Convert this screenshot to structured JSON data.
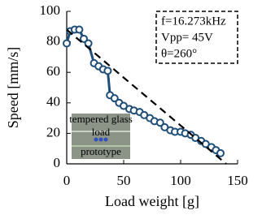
{
  "chart_data": {
    "type": "line",
    "x_label": "Load weight [g]",
    "y_label": "Speed [mm/s]",
    "xlim": [
      0,
      150
    ],
    "xticks": [
      0,
      50,
      100,
      150
    ],
    "ylim": [
      0,
      100
    ],
    "yticks": [
      0,
      20,
      40,
      60,
      80,
      100
    ],
    "annotations": [
      "f=16.273kHz",
      "Vpp= 45V",
      "θ=260°"
    ],
    "inset_labels": [
      "tempered glass",
      "load",
      "prototype"
    ],
    "series": [
      {
        "color": "#1f4e79",
        "x": [
          0,
          3,
          7,
          11,
          15,
          19,
          24,
          28,
          32,
          36,
          38,
          42,
          46,
          50,
          55,
          59,
          64,
          68,
          73,
          77,
          82,
          86,
          91,
          95,
          100,
          104,
          109,
          113,
          118,
          122,
          127,
          131,
          135
        ],
        "values": [
          79,
          87,
          88,
          88,
          82,
          79,
          66,
          64,
          62,
          61,
          45,
          43,
          40,
          38,
          36,
          35,
          34,
          32,
          30,
          28,
          27,
          24,
          22,
          21,
          21,
          20,
          19,
          17,
          15,
          13,
          11,
          9,
          7
        ]
      },
      {
        "color": "#000000",
        "dashed": true,
        "x": [
          0,
          140
        ],
        "values": [
          88,
          0
        ]
      }
    ]
  }
}
